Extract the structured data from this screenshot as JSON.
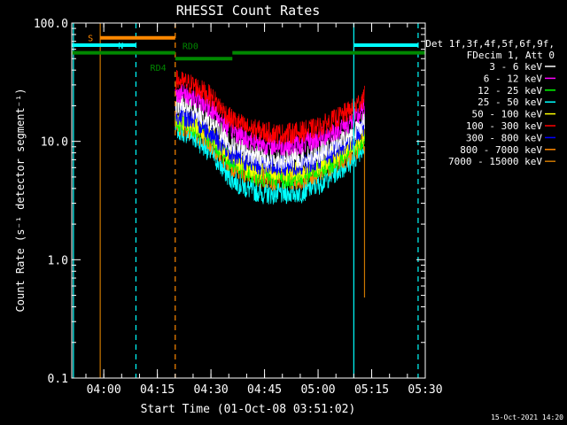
{
  "chart_data": {
    "type": "line",
    "title": "RHESSI Count Rates",
    "xlabel": "Start Time (01-Oct-08 03:51:02)",
    "ylabel": "Count Rate (s⁻¹ detector segment⁻¹)",
    "y_scale": "log",
    "ylim": [
      0.1,
      100
    ],
    "xlim": [
      "03:51:02",
      "05:30:00"
    ],
    "y_ticks": [
      "0.1",
      "1.0",
      "10.0",
      "100.0"
    ],
    "x_ticks": [
      "04:00",
      "04:15",
      "04:30",
      "04:45",
      "05:00",
      "05:15",
      "05:30"
    ],
    "legend": {
      "placement": "top-right",
      "header": [
        "Det 1f,3f,4f,5f,6f,9f,",
        "FDecim 1, Att 0"
      ],
      "entries": [
        {
          "name": "3 - 6 keV",
          "color": "#ffffff"
        },
        {
          "name": "6 - 12 keV",
          "color": "#ff00ff"
        },
        {
          "name": "12 - 25 keV",
          "color": "#00ff00"
        },
        {
          "name": "25 - 50 keV",
          "color": "#00ffff"
        },
        {
          "name": "50 - 100 keV",
          "color": "#ffff00"
        },
        {
          "name": "100 - 300 keV",
          "color": "#ff0000"
        },
        {
          "name": "300 - 800 keV",
          "color": "#0000ff"
        },
        {
          "name": "800 - 7000 keV",
          "color": "#ff8800"
        },
        {
          "name": "7000 - 15000 keV",
          "color": "#cc7700"
        }
      ]
    },
    "x": [
      "04:20",
      "04:25",
      "04:30",
      "04:35",
      "04:40",
      "04:45",
      "04:50",
      "04:55",
      "05:00",
      "05:05",
      "05:10",
      "05:13"
    ],
    "series": [
      {
        "name": "3 - 6 keV",
        "color": "#ffffff",
        "values": [
          21,
          19,
          15,
          10,
          8,
          7.3,
          7,
          7.2,
          8,
          9.5,
          12,
          15
        ]
      },
      {
        "name": "6 - 12 keV",
        "color": "#ff00ff",
        "values": [
          26,
          24,
          19,
          13,
          10.5,
          9.5,
          9.2,
          9.4,
          10.5,
          12.5,
          15,
          19
        ]
      },
      {
        "name": "12 - 25 keV",
        "color": "#00ff00",
        "values": [
          15,
          13.5,
          10.5,
          7,
          5.5,
          5,
          4.9,
          5,
          5.7,
          7,
          8.5,
          11
        ]
      },
      {
        "name": "25 - 50 keV",
        "color": "#00ffff",
        "values": [
          13,
          11,
          8,
          5,
          4,
          3.6,
          3.6,
          3.7,
          4.3,
          5.5,
          7,
          9.5
        ]
      },
      {
        "name": "50 - 100 keV",
        "color": "#ffff00",
        "values": [
          16,
          14.5,
          11.5,
          7.8,
          6.2,
          5.7,
          5.5,
          5.7,
          6.4,
          7.8,
          9.5,
          12
        ]
      },
      {
        "name": "100 - 300 keV",
        "color": "#ff0000",
        "values": [
          33,
          30,
          24,
          16,
          13,
          12,
          11.5,
          12,
          13,
          15.5,
          19,
          24
        ]
      },
      {
        "name": "300 - 800 keV",
        "color": "#0000ff",
        "values": [
          17,
          15.5,
          12,
          8,
          6.8,
          6.3,
          6.2,
          6.3,
          7,
          8.5,
          10.5,
          13.5
        ]
      },
      {
        "name": "800 - 7000 keV",
        "color": "#ff8800",
        "values": [
          14,
          12.5,
          9.5,
          6.5,
          5.2,
          4.8,
          4.7,
          4.8,
          5.4,
          6.6,
          8,
          10.5
        ]
      }
    ],
    "attenuator_bars": [
      {
        "label": "S",
        "color": "#ff8800",
        "start": "03:59:00",
        "end": "04:20:00",
        "level": 75
      },
      {
        "label": "N",
        "color": "#00ffff",
        "start": "03:51:02",
        "end": "04:09:00",
        "level": 65
      },
      {
        "label": "N",
        "color": "#00ffff",
        "start": "05:10:00",
        "end": "05:28:00",
        "level": 65
      },
      {
        "label": "RD0",
        "color": "#008800",
        "start": "03:51:02",
        "end": "05:30:00",
        "level": 56
      },
      {
        "label": "RD4",
        "color": "#008800",
        "start": "04:20:00",
        "end": "04:36:00",
        "level": 50
      }
    ],
    "vertical_markers": [
      {
        "time": "03:51:30",
        "color": "#00ffff",
        "style": "solid"
      },
      {
        "time": "03:59:00",
        "color": "#cc7700",
        "style": "solid"
      },
      {
        "time": "04:09:00",
        "color": "#00ffff",
        "style": "dashed"
      },
      {
        "time": "04:20:00",
        "color": "#ff8800",
        "style": "dashed"
      },
      {
        "time": "05:10:00",
        "color": "#00ffff",
        "style": "solid"
      },
      {
        "time": "05:28:00",
        "color": "#00ffff",
        "style": "dashed"
      }
    ],
    "spike": {
      "time": "05:13:00",
      "color": "#cc7700",
      "from": 9,
      "to": 0.48
    }
  },
  "footer_timestamp": "15-Oct-2021 14:20"
}
